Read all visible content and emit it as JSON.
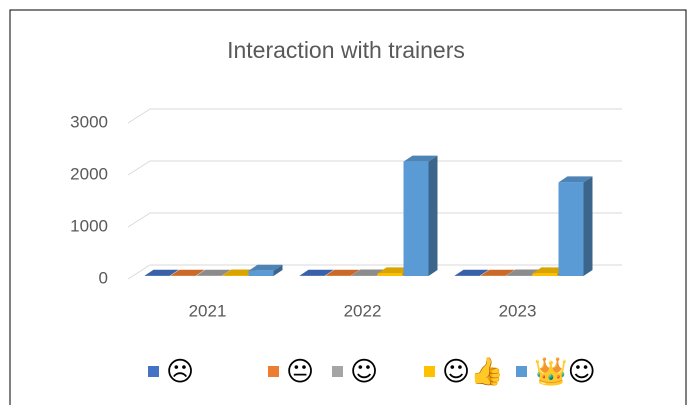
{
  "chart_data": {
    "type": "bar3d",
    "title": "Interaction with trainers",
    "categories": [
      "2021",
      "2022",
      "2023"
    ],
    "series": [
      {
        "name": "☹",
        "color": "#4472c4",
        "values": [
          5,
          5,
          5
        ]
      },
      {
        "name": "😐",
        "color": "#ed7d31",
        "values": [
          5,
          5,
          5
        ]
      },
      {
        "name": "☺",
        "color": "#a5a5a5",
        "values": [
          5,
          10,
          10
        ]
      },
      {
        "name": "☺👍",
        "color": "#ffc000",
        "values": [
          10,
          50,
          50
        ]
      },
      {
        "name": "👑☺",
        "color": "#5b9bd5",
        "values": [
          100,
          2200,
          1800
        ]
      }
    ],
    "ylim": [
      0,
      3000
    ],
    "yticks": [
      0,
      1000,
      2000,
      3000
    ],
    "grid": true,
    "legend": "bottom"
  }
}
